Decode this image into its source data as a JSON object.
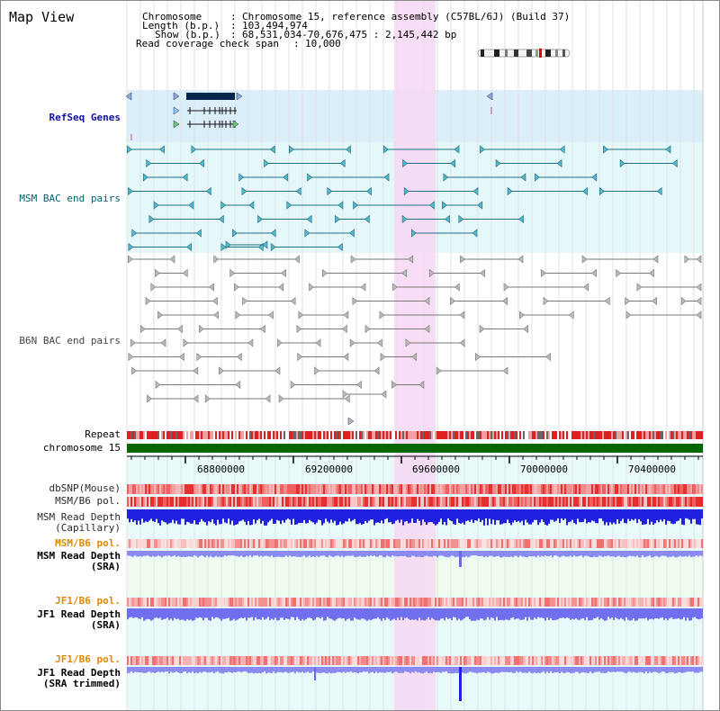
{
  "header": {
    "title": "Map View",
    "chromosome_label": "Chromosome",
    "chromosome_value": "Chromosome 15, reference assembly (C57BL/6J) (Build 37)",
    "length_label": "Length (b.p.)",
    "length_value": "103,494,974",
    "show_label": "Show (b.p.)",
    "show_value": "68,531,034-70,676,475 : 2,145,442 bp",
    "coverage_label": "Read coverage check span",
    "coverage_value": "10,000"
  },
  "tracks": {
    "refseq": "RefSeq Genes",
    "msm_bac": "MSM BAC end pairs",
    "b6n_bac": "B6N BAC end pairs",
    "repeat": "Repeat",
    "chromosome": "chromosome 15",
    "dbsnp": "dbSNP(Mouse)",
    "msm_b6_pol_1": "MSM/B6 pol.",
    "msm_depth_cap_1": "MSM Read Depth",
    "msm_depth_cap_2": "(Capillary)",
    "msm_b6_pol_2": "MSM/B6 pol.",
    "msm_depth_sra_1": "MSM Read Depth",
    "msm_depth_sra_2": "(SRA)",
    "jf1_b6_pol_1": "JF1/B6 pol.",
    "jf1_depth_sra_1": "JF1 Read Depth",
    "jf1_depth_sra_2": "(SRA)",
    "jf1_b6_pol_2": "JF1/B6 pol.",
    "jf1_depth_trim_1": "JF1 Read Depth",
    "jf1_depth_trim_2": "(SRA trimmed)"
  },
  "ruler": {
    "ticks": [
      "68800000",
      "69200000",
      "69600000",
      "70000000",
      "70400000"
    ]
  },
  "colors": {
    "highlight": "#f7d8f2",
    "refseq_bg": "#dbeffa",
    "bac_bg": "#e8fafa",
    "msm_bac": "#1e6f80",
    "b6n_bac": "#7a7a7a",
    "chromosome_bar": "#006600",
    "snp_red": "#e83030",
    "depth_blue": "#2020e0",
    "depth_light": "#8080f0"
  }
}
